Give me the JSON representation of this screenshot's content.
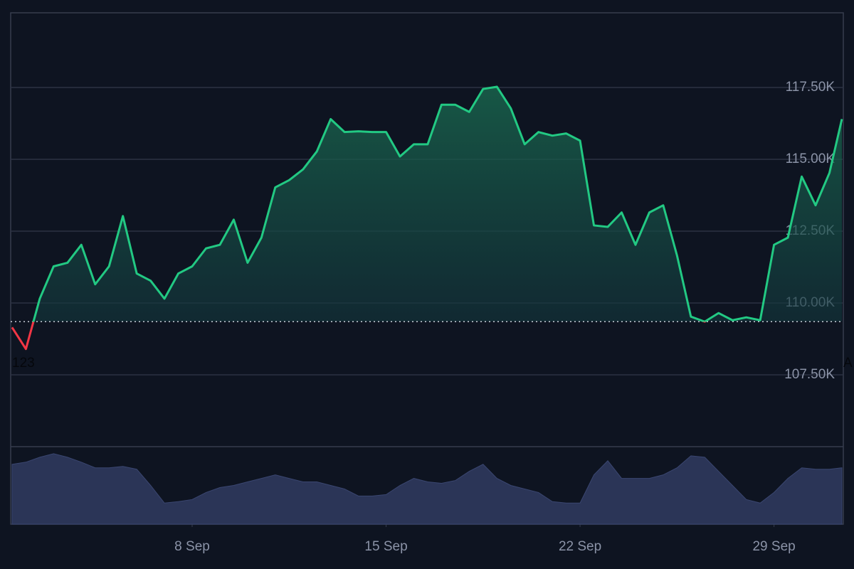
{
  "chart_data": {
    "type": "area",
    "x": [
      1.5,
      2,
      2.5,
      3,
      3.5,
      4,
      4.5,
      5,
      5.5,
      6,
      6.5,
      7,
      7.5,
      8,
      8.5,
      9,
      9.5,
      10,
      10.5,
      11,
      11.5,
      12,
      12.5,
      13,
      13.5,
      14,
      14.5,
      15,
      15.5,
      16,
      16.5,
      17,
      17.5,
      18,
      18.5,
      19,
      19.5,
      20,
      20.5,
      21,
      21.5,
      22,
      22.5,
      23,
      23.5,
      24,
      24.5,
      25,
      25.5,
      26,
      26.5,
      27,
      27.5,
      28,
      28.5,
      29,
      29.5,
      30,
      30.5,
      31,
      31.45
    ],
    "values": [
      109150,
      108400,
      110150,
      111275,
      111400,
      112025,
      110650,
      111275,
      113025,
      111025,
      110775,
      110150,
      111025,
      111275,
      111900,
      112025,
      112900,
      111400,
      112275,
      114025,
      114275,
      114650,
      115275,
      116400,
      115950,
      115975,
      115950,
      115950,
      115100,
      115525,
      115525,
      116900,
      116900,
      116650,
      117450,
      117525,
      116775,
      115525,
      115950,
      115825,
      115900,
      115650,
      112700,
      112650,
      113150,
      112025,
      113150,
      113400,
      111650,
      109525,
      109350,
      109650,
      109400,
      109500,
      109400,
      112025,
      112275,
      114400,
      113400,
      114525,
      116400
    ],
    "volume": [
      85,
      88,
      95,
      100,
      95,
      88,
      80,
      80,
      82,
      78,
      55,
      30,
      32,
      35,
      45,
      52,
      55,
      60,
      65,
      70,
      65,
      60,
      60,
      55,
      50,
      40,
      40,
      42,
      55,
      65,
      60,
      58,
      62,
      75,
      85,
      65,
      55,
      50,
      45,
      32,
      30,
      30,
      70,
      90,
      65,
      65,
      65,
      70,
      80,
      97,
      95,
      75,
      55,
      35,
      30,
      45,
      65,
      80,
      78,
      78,
      80
    ],
    "baseline": 109350,
    "up_color": "#22c983",
    "down_color": "#f23645",
    "volume_color": "#2b3557",
    "xlim": [
      1.45,
      31.45
    ],
    "xticks": [
      {
        "value": 8,
        "label": "8 Sep"
      },
      {
        "value": 15,
        "label": "15 Sep"
      },
      {
        "value": 22,
        "label": "22 Sep"
      },
      {
        "value": 29,
        "label": "29 Sep"
      }
    ],
    "ylim": [
      105000,
      120100
    ],
    "yticks": [
      {
        "value": 107500,
        "label": "107.50K"
      },
      {
        "value": 110000,
        "label": "110.00K"
      },
      {
        "value": 112500,
        "label": "112.50K"
      },
      {
        "value": 115000,
        "label": "115.00K"
      },
      {
        "value": 117500,
        "label": "117.50K"
      }
    ],
    "vlim": [
      0,
      110
    ],
    "annotations": [
      "123",
      "A"
    ],
    "grid": true
  }
}
